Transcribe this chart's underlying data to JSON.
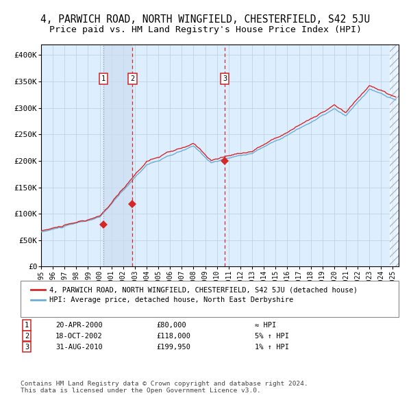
{
  "title": "4, PARWICH ROAD, NORTH WINGFIELD, CHESTERFIELD, S42 5JU",
  "subtitle": "Price paid vs. HM Land Registry's House Price Index (HPI)",
  "ylabel_ticks": [
    "£0",
    "£50K",
    "£100K",
    "£150K",
    "£200K",
    "£250K",
    "£300K",
    "£350K",
    "£400K"
  ],
  "ytick_values": [
    0,
    50000,
    100000,
    150000,
    200000,
    250000,
    300000,
    350000,
    400000
  ],
  "ylim": [
    0,
    420000
  ],
  "xlim_start": 1995.0,
  "xlim_end": 2025.5,
  "sale_dates": [
    2000.3,
    2002.8,
    2010.67
  ],
  "sale_prices": [
    80000,
    118000,
    199950
  ],
  "sale_labels": [
    "1",
    "2",
    "3"
  ],
  "vline_dashed_dates": [
    2002.8,
    2010.67
  ],
  "vline_dotted_dates": [
    2000.3
  ],
  "legend_line1": "4, PARWICH ROAD, NORTH WINGFIELD, CHESTERFIELD, S42 5JU (detached house)",
  "legend_line2": "HPI: Average price, detached house, North East Derbyshire",
  "table_rows": [
    [
      "1",
      "20-APR-2000",
      "£80,000",
      "≈ HPI"
    ],
    [
      "2",
      "18-OCT-2002",
      "£118,000",
      "5% ↑ HPI"
    ],
    [
      "3",
      "31-AUG-2010",
      "£199,950",
      "1% ↑ HPI"
    ]
  ],
  "footer": "Contains HM Land Registry data © Crown copyright and database right 2024.\nThis data is licensed under the Open Government Licence v3.0.",
  "hpi_color": "#6baed6",
  "price_color": "#d62728",
  "marker_color": "#d62728",
  "bg_color": "#ddeeff",
  "grid_color": "#bbccdd",
  "vspan_color": "#ccddf0",
  "title_fontsize": 10.5,
  "subtitle_fontsize": 9.5,
  "axis_fontsize": 8,
  "mono_font": "DejaVu Sans Mono"
}
